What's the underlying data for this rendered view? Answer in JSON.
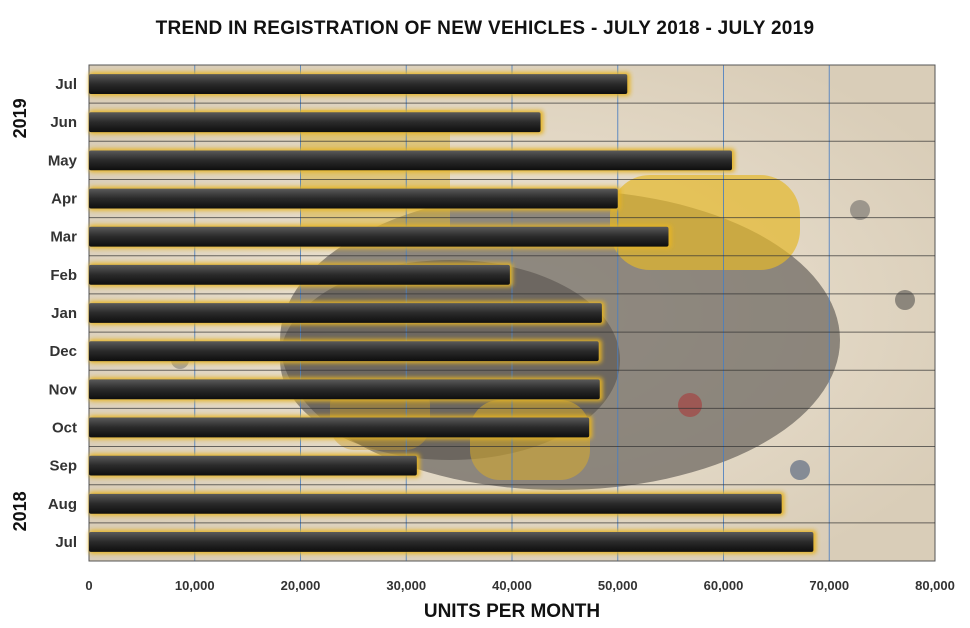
{
  "chart_data": {
    "type": "bar",
    "orientation": "horizontal",
    "title": "TREND IN REGISTRATION OF NEW VEHICLES - JULY 2018 - JULY 2019",
    "xlabel": "UNITS PER MONTH",
    "ylabel": "",
    "xlim": [
      0,
      80000
    ],
    "x_ticks": [
      "0",
      "10,000",
      "20,000",
      "30,000",
      "40,000",
      "50,000",
      "60,000",
      "70,000",
      "80,000"
    ],
    "grid": true,
    "legend": "none",
    "groups": [
      {
        "label": "2018",
        "categories": [
          "Jul",
          "Aug",
          "Sep",
          "Oct",
          "Nov",
          "Dec"
        ]
      },
      {
        "label": "2019",
        "categories": [
          "Jan",
          "Feb",
          "Mar",
          "Apr",
          "May",
          "Jun",
          "Jul"
        ]
      }
    ],
    "categories": [
      "Jul",
      "Aug",
      "Sep",
      "Oct",
      "Nov",
      "Dec",
      "Jan",
      "Feb",
      "Mar",
      "Apr",
      "May",
      "Jun",
      "Jul"
    ],
    "values": [
      68500,
      65500,
      31000,
      47300,
      48300,
      48200,
      48500,
      39800,
      54800,
      50000,
      60800,
      42700,
      50900
    ],
    "colors": {
      "bar_fill": "#2e2e2e",
      "bar_glow": "#e6b422",
      "grid": "#4a7fc1",
      "separator": "#333333"
    }
  }
}
